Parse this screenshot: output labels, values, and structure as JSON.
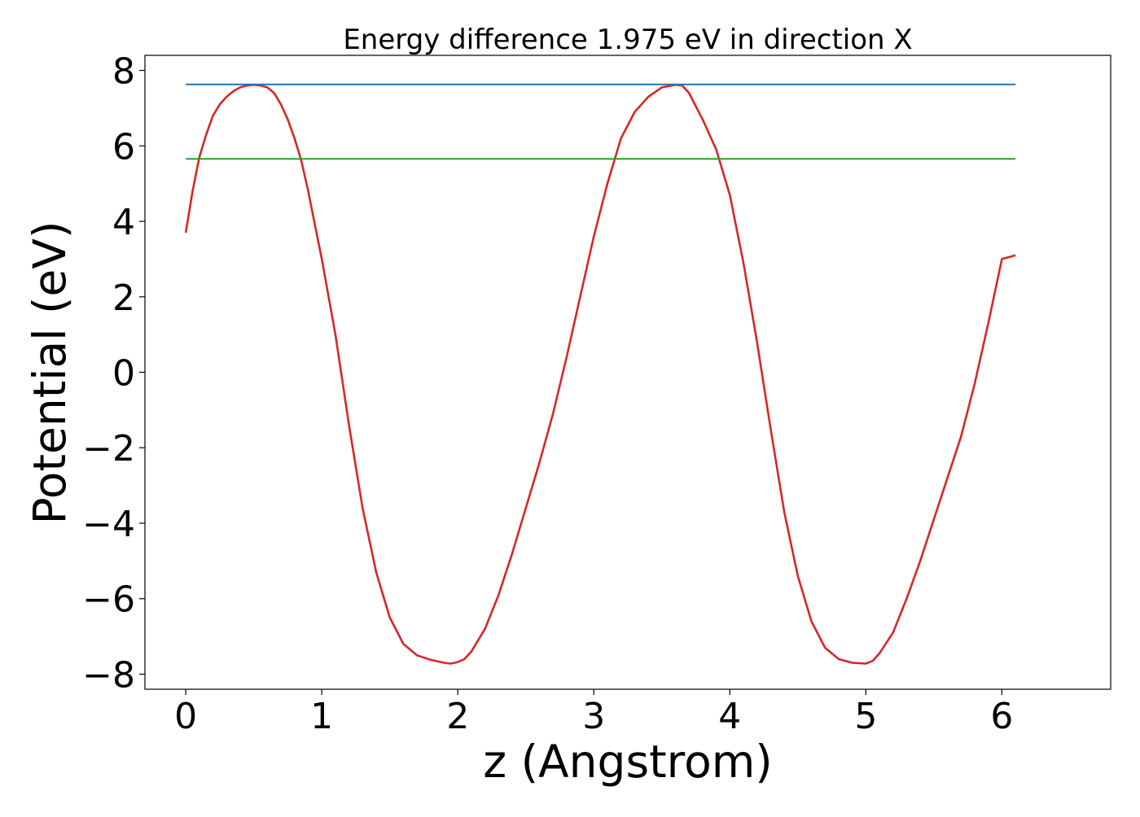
{
  "chart_data": {
    "type": "line",
    "title": "Energy difference 1.975 eV in direction X",
    "xlabel": "z (Angstrom)",
    "ylabel": "Potential (eV)",
    "xlim": [
      -0.3,
      6.8
    ],
    "ylim": [
      -8.4,
      8.4
    ],
    "xticks": [
      0,
      1,
      2,
      3,
      4,
      5,
      6
    ],
    "yticks": [
      8,
      6,
      4,
      2,
      0,
      -2,
      -4,
      -6,
      -8
    ],
    "xtick_labels": [
      "0",
      "1",
      "2",
      "3",
      "4",
      "5",
      "6"
    ],
    "ytick_labels": [
      "8",
      "6",
      "4",
      "2",
      "0",
      "−2",
      "−4",
      "−6",
      "−8"
    ],
    "grid": false,
    "legend": "none",
    "series": [
      {
        "color": "#d62728",
        "x": [
          0.0,
          0.05,
          0.1,
          0.15,
          0.2,
          0.25,
          0.3,
          0.35,
          0.4,
          0.45,
          0.5,
          0.55,
          0.6,
          0.65,
          0.7,
          0.75,
          0.8,
          0.85,
          0.9,
          0.95,
          1.0,
          1.1,
          1.2,
          1.3,
          1.4,
          1.5,
          1.6,
          1.7,
          1.8,
          1.9,
          1.95,
          2.0,
          2.05,
          2.1,
          2.2,
          2.3,
          2.4,
          2.5,
          2.6,
          2.7,
          2.8,
          2.9,
          3.0,
          3.1,
          3.2,
          3.3,
          3.4,
          3.5,
          3.6,
          3.65,
          3.7,
          3.8,
          3.9,
          4.0,
          4.1,
          4.2,
          4.3,
          4.4,
          4.5,
          4.6,
          4.7,
          4.8,
          4.9,
          5.0,
          5.05,
          5.1,
          5.2,
          5.3,
          5.4,
          5.5,
          5.6,
          5.7,
          5.8,
          5.9,
          6.0,
          6.1
        ],
        "y": [
          3.7,
          4.8,
          5.7,
          6.3,
          6.8,
          7.1,
          7.3,
          7.45,
          7.55,
          7.6,
          7.62,
          7.6,
          7.55,
          7.4,
          7.1,
          6.7,
          6.2,
          5.6,
          4.8,
          3.9,
          3.0,
          1.0,
          -1.4,
          -3.6,
          -5.3,
          -6.5,
          -7.2,
          -7.5,
          -7.62,
          -7.7,
          -7.72,
          -7.68,
          -7.6,
          -7.4,
          -6.8,
          -5.9,
          -4.8,
          -3.6,
          -2.4,
          -1.1,
          0.4,
          2.0,
          3.6,
          5.0,
          6.2,
          6.9,
          7.3,
          7.55,
          7.62,
          7.6,
          7.4,
          6.7,
          5.9,
          4.7,
          2.9,
          0.8,
          -1.5,
          -3.7,
          -5.4,
          -6.6,
          -7.3,
          -7.6,
          -7.7,
          -7.72,
          -7.65,
          -7.45,
          -6.9,
          -6.0,
          -5.0,
          -3.9,
          -2.8,
          -1.7,
          -0.3,
          1.3,
          3.0,
          3.1
        ]
      },
      {
        "color": "#1f77b4",
        "x": [
          0.0,
          6.1
        ],
        "y": [
          7.63,
          7.63
        ]
      },
      {
        "color": "#2ca02c",
        "x": [
          0.0,
          6.1
        ],
        "y": [
          5.655,
          5.655
        ]
      }
    ]
  }
}
